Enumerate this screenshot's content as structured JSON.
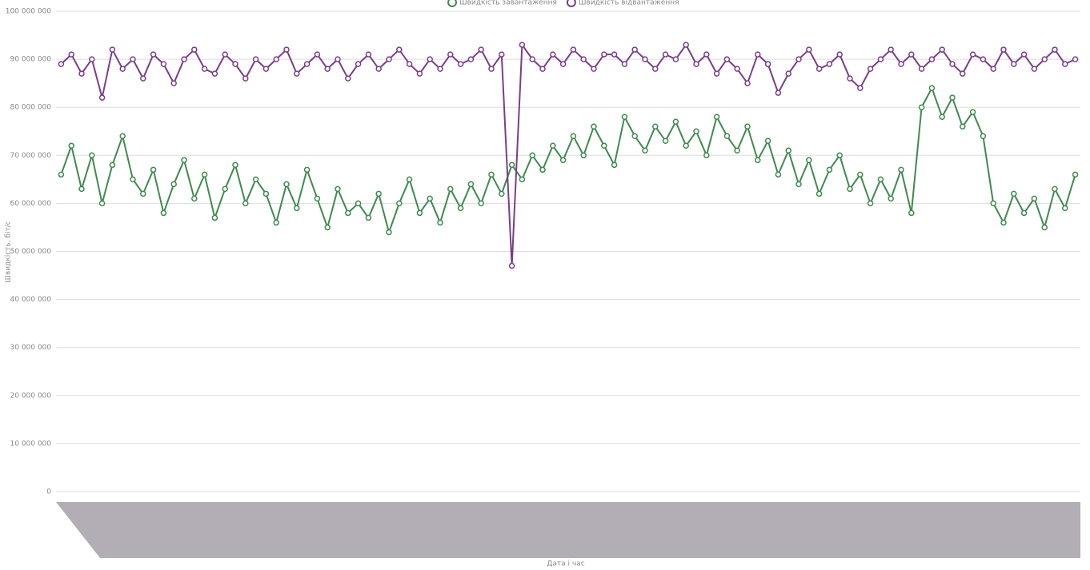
{
  "chart_data": {
    "type": "line",
    "y_label": "Швидкість, біт/с",
    "x_label": "Дата і час",
    "categories": [
      null,
      null,
      null,
      null,
      null,
      null,
      null,
      null,
      null,
      null,
      null,
      null,
      null,
      null,
      null,
      null,
      null,
      null,
      null,
      null,
      null,
      null,
      null,
      null,
      null,
      null,
      null,
      null,
      null,
      null,
      null,
      null,
      null,
      null,
      null,
      null,
      null,
      null,
      null,
      null,
      null,
      null,
      null,
      null,
      null,
      null,
      null,
      null,
      null,
      null,
      null,
      null,
      null,
      null,
      null,
      null,
      null,
      null,
      null,
      null,
      null,
      null,
      null,
      null,
      null,
      null,
      null,
      null,
      null,
      null,
      null,
      null,
      null,
      null,
      null,
      null,
      null,
      null,
      null,
      null,
      null,
      null,
      null,
      null,
      null,
      null,
      null,
      null,
      null,
      null,
      null,
      null,
      null,
      null,
      null,
      null,
      null,
      null,
      null,
      null
    ],
    "series": [
      {
        "name": "Швидкість завантаження",
        "color": "#3f8a4f",
        "values": [
          66000000,
          72000000,
          63000000,
          70000000,
          60000000,
          68000000,
          74000000,
          65000000,
          62000000,
          67000000,
          58000000,
          64000000,
          69000000,
          61000000,
          66000000,
          57000000,
          63000000,
          68000000,
          60000000,
          65000000,
          62000000,
          56000000,
          64000000,
          59000000,
          67000000,
          61000000,
          55000000,
          63000000,
          58000000,
          60000000,
          57000000,
          62000000,
          54000000,
          60000000,
          65000000,
          58000000,
          61000000,
          56000000,
          63000000,
          59000000,
          64000000,
          60000000,
          66000000,
          62000000,
          68000000,
          65000000,
          70000000,
          67000000,
          72000000,
          69000000,
          74000000,
          70000000,
          76000000,
          72000000,
          68000000,
          78000000,
          74000000,
          71000000,
          76000000,
          73000000,
          77000000,
          72000000,
          75000000,
          70000000,
          78000000,
          74000000,
          71000000,
          76000000,
          69000000,
          73000000,
          66000000,
          71000000,
          64000000,
          69000000,
          62000000,
          67000000,
          70000000,
          63000000,
          66000000,
          60000000,
          65000000,
          61000000,
          67000000,
          58000000,
          80000000,
          84000000,
          78000000,
          82000000,
          76000000,
          79000000,
          74000000,
          60000000,
          56000000,
          62000000,
          58000000,
          61000000,
          55000000,
          63000000,
          59000000,
          66000000
        ]
      },
      {
        "name": "Швидкість відвантаження",
        "color": "#7a3d8a",
        "values": [
          89000000,
          91000000,
          87000000,
          90000000,
          82000000,
          92000000,
          88000000,
          90000000,
          86000000,
          91000000,
          89000000,
          85000000,
          90000000,
          92000000,
          88000000,
          87000000,
          91000000,
          89000000,
          86000000,
          90000000,
          88000000,
          90000000,
          92000000,
          87000000,
          89000000,
          91000000,
          88000000,
          90000000,
          86000000,
          89000000,
          91000000,
          88000000,
          90000000,
          92000000,
          89000000,
          87000000,
          90000000,
          88000000,
          91000000,
          89000000,
          90000000,
          92000000,
          88000000,
          91000000,
          47000000,
          93000000,
          90000000,
          88000000,
          91000000,
          89000000,
          92000000,
          90000000,
          88000000,
          91000000,
          91000000,
          89000000,
          92000000,
          90000000,
          88000000,
          91000000,
          90000000,
          93000000,
          89000000,
          91000000,
          87000000,
          90000000,
          88000000,
          85000000,
          91000000,
          89000000,
          83000000,
          87000000,
          90000000,
          92000000,
          88000000,
          89000000,
          91000000,
          86000000,
          84000000,
          88000000,
          90000000,
          92000000,
          89000000,
          91000000,
          88000000,
          90000000,
          92000000,
          89000000,
          87000000,
          91000000,
          90000000,
          88000000,
          92000000,
          89000000,
          91000000,
          88000000,
          90000000,
          92000000,
          89000000,
          90000000
        ]
      }
    ],
    "ylim": [
      0,
      100000000
    ],
    "yticks": [
      0,
      {
        "value": 10000000,
        "label": "10 000 000"
      },
      {
        "value": 20000000,
        "label": "20 000 000"
      },
      {
        "value": 30000000,
        "label": "30 000 000"
      },
      {
        "value": 40000000,
        "label": "40 000 000"
      },
      {
        "value": 50000000,
        "label": "50 000 000"
      },
      {
        "value": 60000000,
        "label": "60 000 000"
      },
      {
        "value": 70000000,
        "label": "70 000 000"
      },
      {
        "value": 80000000,
        "label": "80 000 000"
      },
      {
        "value": 90000000,
        "label": "90 000 000"
      },
      {
        "value": 100000000,
        "label": "100 000 000"
      }
    ],
    "grid": true
  }
}
